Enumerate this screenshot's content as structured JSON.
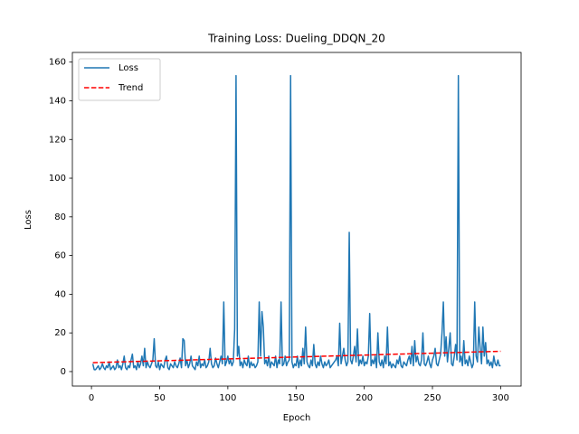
{
  "chart_data": {
    "type": "line",
    "title": "Training Loss: Dueling_DDQN_20",
    "xlabel": "Epoch",
    "ylabel": "Loss",
    "xlim": [
      -14,
      315
    ],
    "ylim": [
      -7.5,
      165
    ],
    "xticks": [
      0,
      50,
      100,
      150,
      200,
      250,
      300
    ],
    "yticks": [
      0,
      20,
      40,
      60,
      80,
      100,
      120,
      140,
      160
    ],
    "legend": "upper left",
    "grid": false,
    "series": [
      {
        "name": "Loss",
        "color": "#1f77b4",
        "style": "solid",
        "x": [
          1,
          2,
          3,
          4,
          5,
          6,
          7,
          8,
          9,
          10,
          11,
          12,
          13,
          14,
          15,
          16,
          17,
          18,
          19,
          20,
          21,
          22,
          23,
          24,
          25,
          26,
          27,
          28,
          29,
          30,
          31,
          32,
          33,
          34,
          35,
          36,
          37,
          38,
          39,
          40,
          41,
          42,
          43,
          44,
          45,
          46,
          47,
          48,
          49,
          50,
          51,
          52,
          53,
          54,
          55,
          56,
          57,
          58,
          59,
          60,
          61,
          62,
          63,
          64,
          65,
          66,
          67,
          68,
          69,
          70,
          71,
          72,
          73,
          74,
          75,
          76,
          77,
          78,
          79,
          80,
          81,
          82,
          83,
          84,
          85,
          86,
          87,
          88,
          89,
          90,
          91,
          92,
          93,
          94,
          95,
          96,
          97,
          98,
          99,
          100,
          101,
          102,
          103,
          104,
          105,
          106,
          107,
          108,
          109,
          110,
          111,
          112,
          113,
          114,
          115,
          116,
          117,
          118,
          119,
          120,
          121,
          122,
          123,
          124,
          125,
          126,
          127,
          128,
          129,
          130,
          131,
          132,
          133,
          134,
          135,
          136,
          137,
          138,
          139,
          140,
          141,
          142,
          143,
          144,
          145,
          146,
          147,
          148,
          149,
          150,
          151,
          152,
          153,
          154,
          155,
          156,
          157,
          158,
          159,
          160,
          161,
          162,
          163,
          164,
          165,
          166,
          167,
          168,
          169,
          170,
          171,
          172,
          173,
          174,
          175,
          176,
          177,
          178,
          179,
          180,
          181,
          182,
          183,
          184,
          185,
          186,
          187,
          188,
          189,
          190,
          191,
          192,
          193,
          194,
          195,
          196,
          197,
          198,
          199,
          200,
          201,
          202,
          203,
          204,
          205,
          206,
          207,
          208,
          209,
          210,
          211,
          212,
          213,
          214,
          215,
          216,
          217,
          218,
          219,
          220,
          221,
          222,
          223,
          224,
          225,
          226,
          227,
          228,
          229,
          230,
          231,
          232,
          233,
          234,
          235,
          236,
          237,
          238,
          239,
          240,
          241,
          242,
          243,
          244,
          245,
          246,
          247,
          248,
          249,
          250,
          251,
          252,
          253,
          254,
          255,
          256,
          257,
          258,
          259,
          260,
          261,
          262,
          263,
          264,
          265,
          266,
          267,
          268,
          269,
          270,
          271,
          272,
          273,
          274,
          275,
          276,
          277,
          278,
          279,
          280,
          281,
          282,
          283,
          284,
          285,
          286,
          287,
          288,
          289,
          290,
          291,
          292,
          293,
          294,
          295,
          296,
          297,
          298,
          299,
          300
        ],
        "values": [
          4,
          1,
          1,
          2,
          3,
          1,
          2,
          4,
          2,
          1,
          3,
          2,
          5,
          1,
          2,
          3,
          1,
          2,
          6,
          2,
          3,
          1,
          4,
          8,
          2,
          1,
          3,
          2,
          6,
          9,
          2,
          3,
          1,
          5,
          2,
          4,
          8,
          3,
          12,
          2,
          5,
          3,
          2,
          4,
          6,
          17,
          3,
          2,
          5,
          1,
          4,
          3,
          2,
          6,
          8,
          2,
          1,
          4,
          3,
          2,
          5,
          3,
          2,
          4,
          7,
          2,
          17,
          16,
          3,
          6,
          2,
          4,
          8,
          3,
          2,
          1,
          5,
          3,
          8,
          2,
          4,
          3,
          6,
          2,
          3,
          5,
          12,
          4,
          2,
          3,
          7,
          4,
          2,
          5,
          8,
          4,
          36,
          3,
          5,
          8,
          4,
          6,
          3,
          5,
          22,
          153,
          8,
          13,
          3,
          5,
          2,
          6,
          4,
          3,
          8,
          2,
          5,
          3,
          4,
          2,
          3,
          5,
          36,
          8,
          31,
          23,
          4,
          6,
          3,
          8,
          2,
          5,
          4,
          3,
          8,
          2,
          6,
          4,
          36,
          3,
          4,
          8,
          3,
          5,
          6,
          153,
          5,
          2,
          4,
          3,
          8,
          2,
          6,
          3,
          12,
          4,
          23,
          5,
          3,
          2,
          6,
          3,
          14,
          4,
          2,
          5,
          3,
          8,
          4,
          2,
          5,
          3,
          4,
          6,
          2,
          3,
          4,
          5,
          6,
          8,
          3,
          25,
          4,
          8,
          12,
          6,
          3,
          5,
          72,
          6,
          4,
          8,
          13,
          5,
          22,
          3,
          6,
          4,
          8,
          3,
          5,
          4,
          8,
          30,
          3,
          6,
          4,
          8,
          2,
          20,
          5,
          3,
          6,
          2,
          8,
          4,
          23,
          3,
          5,
          2,
          4,
          3,
          2,
          6,
          4,
          8,
          3,
          2,
          5,
          4,
          3,
          6,
          8,
          4,
          13,
          3,
          16,
          5,
          8,
          4,
          3,
          6,
          20,
          4,
          3,
          5,
          8,
          4,
          2,
          6,
          8,
          12,
          4,
          3,
          6,
          9,
          20,
          36,
          8,
          18,
          5,
          12,
          20,
          4,
          3,
          8,
          14,
          6,
          153,
          5,
          8,
          3,
          16,
          4,
          6,
          3,
          8,
          5,
          2,
          4,
          36,
          8,
          5,
          23,
          12,
          4,
          23,
          8,
          15,
          4,
          6,
          3,
          5,
          2,
          8,
          4,
          3,
          6,
          3,
          3
        ]
      },
      {
        "name": "Trend",
        "color": "#ff0000",
        "style": "dashed",
        "x": [
          1,
          300
        ],
        "values": [
          4.6,
          10.5
        ]
      }
    ]
  }
}
